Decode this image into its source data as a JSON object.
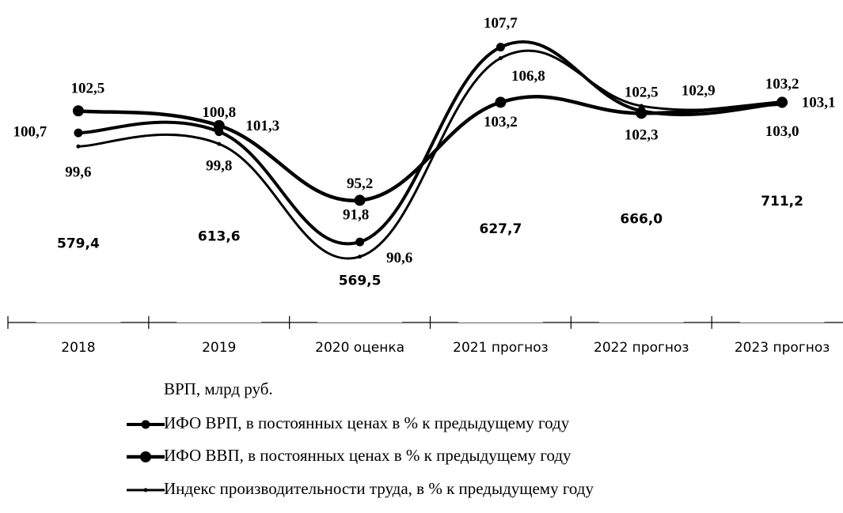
{
  "chart_data": {
    "type": "line",
    "categories": [
      "2018",
      "2019",
      "2020 оценка",
      "2021 прогноз",
      "2022 прогноз",
      "2023 прогноз"
    ],
    "ylim": [
      86,
      110
    ],
    "y2lim": [
      300,
      1300
    ],
    "grid": false,
    "series": [
      {
        "name": "ВРП, млрд руб.",
        "type": "bar",
        "axis": "y2",
        "color": "#ffffff",
        "values": [
          579.4,
          613.6,
          569.5,
          627.7,
          666.0,
          711.2
        ],
        "value_labels": [
          "579,4",
          "613,6",
          "569,5",
          "627,7",
          "666,0",
          "711,2"
        ]
      },
      {
        "name": "ИФО ВРП, в постоянных ценах в % к предыдущему году",
        "color": "#000000",
        "values": [
          100.7,
          100.8,
          91.8,
          107.7,
          102.5,
          103.1
        ],
        "value_labels": [
          "100,7",
          "100,8",
          "91,8",
          "107,7",
          "102,5",
          "103,1"
        ]
      },
      {
        "name": "ИФО ВВП, в постоянных ценах в % к предыдущему году",
        "color": "#000000",
        "values": [
          102.5,
          101.3,
          95.2,
          103.2,
          102.3,
          103.2
        ],
        "value_labels": [
          "102,5",
          "101,3",
          "95,2",
          "103,2",
          "102,3",
          "103,2"
        ]
      },
      {
        "name": "Индекс производительности труда, в % к предыдущему году",
        "color": "#000000",
        "values": [
          99.6,
          99.8,
          90.6,
          106.8,
          102.9,
          103.0
        ],
        "value_labels": [
          "99,6",
          "99,8",
          "90,6",
          "106,8",
          "102,9",
          "103,0"
        ]
      }
    ]
  }
}
